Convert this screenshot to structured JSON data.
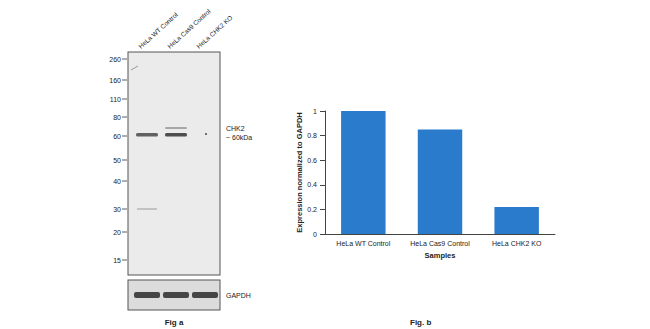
{
  "blot": {
    "caption": "Fig a",
    "lanes": [
      "HeLa WT Control",
      "HeLa Cas9 Control",
      "HeLa CHK2 KO"
    ],
    "markers": [
      260,
      160,
      110,
      80,
      60,
      50,
      40,
      30,
      20,
      15
    ],
    "target": [
      "CHK2",
      "~ 60kDa"
    ],
    "loading_control": "GAPDH"
  },
  "chart_data": {
    "type": "bar",
    "caption": "Fig. b",
    "categories": [
      "HeLa WT Control",
      "HeLa Cas9 Control",
      "HeLa CHK2 KO"
    ],
    "values": [
      1,
      0.85,
      0.22
    ],
    "color": "#2b7bcd",
    "x_label": "Samples",
    "y_label": "Expression normalized to GAPDH",
    "ylim": [
      0,
      1
    ],
    "yticks": [
      0,
      0.2,
      0.4,
      0.6,
      0.8,
      1
    ],
    "grid": false
  }
}
